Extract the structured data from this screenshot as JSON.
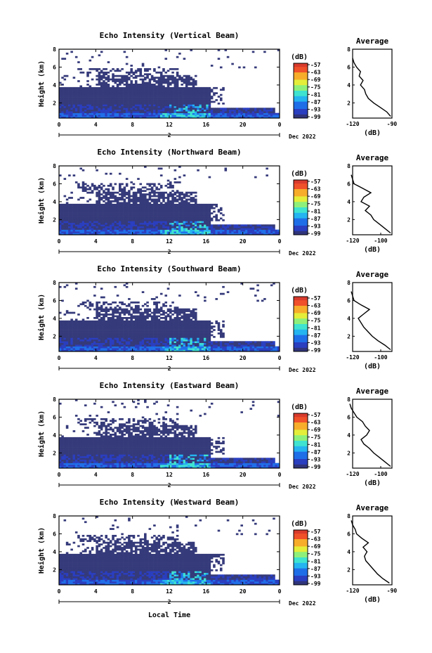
{
  "figure": {
    "xlabel": "Local Time",
    "date_suffix": "Dec 2022",
    "day_label": "2",
    "colorbar_unit": "(dB)",
    "colorbar_ticks": [
      "-57",
      "-63",
      "-69",
      "-75",
      "-81",
      "-87",
      "-93",
      "-99"
    ],
    "colors": {
      "background": "#ffffff",
      "low_echo": "#353a7a",
      "scale": [
        "#30347a",
        "#2a3ec0",
        "#1f6ee8",
        "#25b4ef",
        "#3fe3d0",
        "#8ef07a",
        "#e4ee3a",
        "#f7ac2a",
        "#f0502a",
        "#d83a2c"
      ]
    }
  },
  "chart_data": [
    {
      "type": "heatmap",
      "title": "Echo Intensity (Vertical Beam)",
      "ylabel": "Height (km)",
      "xlim": [
        0,
        24
      ],
      "ylim": [
        0.3,
        8
      ],
      "x_ticks": [
        "0",
        "4",
        "8",
        "12",
        "16",
        "20",
        "0"
      ],
      "y_ticks": [
        "2",
        "4",
        "6",
        "8"
      ],
      "avg_profile": {
        "title": "Average",
        "xlabel": "(dB)",
        "xlim": [
          -120,
          -90
        ],
        "x_ticks": [
          "-120",
          "-90"
        ],
        "y_ticks": [
          "2",
          "4",
          "6",
          "8"
        ],
        "height": [
          0.5,
          1,
          1.5,
          2,
          2.5,
          3,
          3.5,
          4,
          4.5,
          5,
          5.5,
          6,
          6.5,
          7
        ],
        "db": [
          -91,
          -94,
          -99,
          -104,
          -108,
          -110,
          -111,
          -114,
          -112,
          -115,
          -114,
          -117,
          -119,
          -120
        ]
      }
    },
    {
      "type": "heatmap",
      "title": "Echo Intensity (Northward Beam)",
      "ylabel": "Height (km)",
      "xlim": [
        0,
        24
      ],
      "ylim": [
        0.3,
        8
      ],
      "x_ticks": [
        "0",
        "4",
        "8",
        "12",
        "16",
        "20",
        "0"
      ],
      "y_ticks": [
        "2",
        "4",
        "6",
        "8"
      ],
      "avg_profile": {
        "title": "Average",
        "xlabel": "(dB)",
        "xlim": [
          -120,
          -92
        ],
        "x_ticks": [
          "-120",
          "-100"
        ],
        "y_ticks": [
          "2",
          "4",
          "6",
          "8"
        ],
        "height": [
          0.5,
          1,
          1.5,
          2,
          2.5,
          3,
          3.5,
          4,
          4.5,
          5,
          5.5,
          6,
          6.5,
          7
        ],
        "db": [
          -93,
          -97,
          -101,
          -105,
          -107,
          -111,
          -108,
          -114,
          -112,
          -107,
          -113,
          -119,
          -120,
          -121
        ]
      }
    },
    {
      "type": "heatmap",
      "title": "Echo Intensity (Southward Beam)",
      "ylabel": "Height (km)",
      "xlim": [
        0,
        24
      ],
      "ylim": [
        0.3,
        8
      ],
      "x_ticks": [
        "0",
        "4",
        "8",
        "12",
        "16",
        "20",
        "0"
      ],
      "y_ticks": [
        "2",
        "4",
        "6",
        "8"
      ],
      "avg_profile": {
        "title": "Average",
        "xlabel": "(dB)",
        "xlim": [
          -120,
          -92
        ],
        "x_ticks": [
          "-120",
          "-100"
        ],
        "y_ticks": [
          "2",
          "4",
          "6",
          "8"
        ],
        "height": [
          0.5,
          1,
          1.5,
          2,
          2.5,
          3,
          3.5,
          4,
          4.5,
          5,
          5.5,
          6,
          6.5,
          7
        ],
        "db": [
          -93,
          -97,
          -102,
          -106,
          -109,
          -112,
          -114,
          -116,
          -112,
          -108,
          -114,
          -119,
          -120,
          -121
        ]
      }
    },
    {
      "type": "heatmap",
      "title": "Echo Intensity (Eastward Beam)",
      "ylabel": "Height (km)",
      "xlim": [
        0,
        24
      ],
      "ylim": [
        0.3,
        8
      ],
      "x_ticks": [
        "0",
        "4",
        "8",
        "12",
        "16",
        "20",
        "0"
      ],
      "y_ticks": [
        "2",
        "4",
        "6",
        "8"
      ],
      "avg_profile": {
        "title": "Average",
        "xlabel": "(dB)",
        "xlim": [
          -120,
          -92
        ],
        "x_ticks": [
          "-120",
          "-100"
        ],
        "y_ticks": [
          "2",
          "4",
          "6",
          "8"
        ],
        "height": [
          0.5,
          1,
          1.5,
          2,
          2.5,
          3,
          3.5,
          4,
          4.5,
          5,
          5.5,
          6,
          6.5,
          7,
          7.5
        ],
        "db": [
          -93,
          -97,
          -101,
          -105,
          -108,
          -112,
          -114,
          -110,
          -108,
          -111,
          -113,
          -117,
          -119,
          -121,
          -122
        ]
      }
    },
    {
      "type": "heatmap",
      "title": "Echo Intensity (Westward Beam)",
      "ylabel": "Height (km)",
      "xlim": [
        0,
        24
      ],
      "ylim": [
        0.3,
        8
      ],
      "x_ticks": [
        "0",
        "4",
        "8",
        "12",
        "16",
        "20",
        "0"
      ],
      "y_ticks": [
        "2",
        "4",
        "6",
        "8"
      ],
      "avg_profile": {
        "title": "Average",
        "xlabel": "(dB)",
        "xlim": [
          -120,
          -90
        ],
        "x_ticks": [
          "-120",
          "-90"
        ],
        "y_ticks": [
          "2",
          "4",
          "6",
          "8"
        ],
        "height": [
          0.5,
          1,
          1.5,
          2,
          2.5,
          3,
          3.5,
          4,
          4.5,
          5,
          5.5,
          6,
          6.5,
          7,
          7.5
        ],
        "db": [
          -92,
          -97,
          -101,
          -104,
          -107,
          -110,
          -111,
          -109,
          -112,
          -108,
          -113,
          -117,
          -118,
          -120,
          -121
        ]
      }
    }
  ]
}
